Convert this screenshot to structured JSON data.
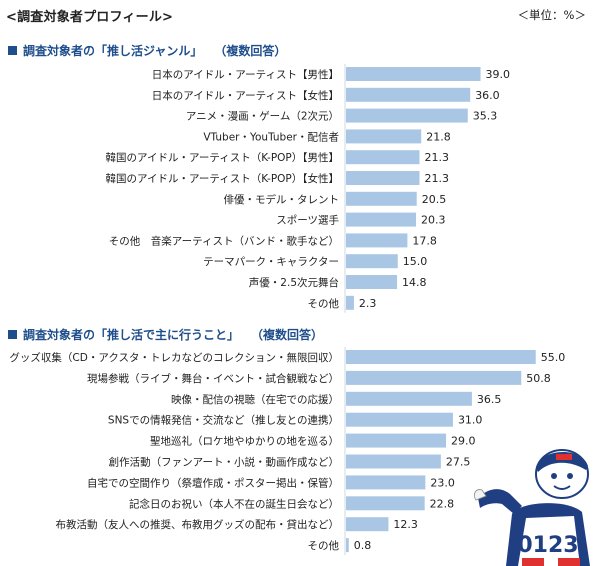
{
  "page": {
    "title": "<調査対象者プロフィール>",
    "unit": "＜単位：%＞"
  },
  "chart_data": [
    {
      "type": "bar",
      "orientation": "horizontal",
      "title": "調査対象者の「推し活ジャンル」",
      "note": "（複数回答）",
      "categories": [
        "日本のアイドル・アーティスト【男性】",
        "日本のアイドル・アーティスト【女性】",
        "アニメ・漫画・ゲーム（2次元）",
        "VTuber・YouTuber・配信者",
        "韓国のアイドル・アーティスト（K-POP）【男性】",
        "韓国のアイドル・アーティスト（K-POP）【女性】",
        "俳優・モデル・タレント",
        "スポーツ選手",
        "その他　音楽アーティスト（バンド・歌手など）",
        "テーマパーク・キャラクター",
        "声優・2.5次元舞台",
        "その他"
      ],
      "values": [
        39.0,
        36.0,
        35.3,
        21.8,
        21.3,
        21.3,
        20.5,
        20.3,
        17.8,
        15.0,
        14.8,
        2.3
      ],
      "value_labels": [
        "39.0",
        "36.0",
        "35.3",
        "21.8",
        "21.3",
        "21.3",
        "20.5",
        "20.3",
        "17.8",
        "15.0",
        "14.8",
        "2.3"
      ],
      "xlim": [
        0,
        60
      ],
      "bar_color": "#a9c7e4",
      "title_color": "#1f4e8c"
    },
    {
      "type": "bar",
      "orientation": "horizontal",
      "title": "調査対象者の「推し活で主に行うこと」",
      "note": "（複数回答）",
      "categories": [
        "グッズ収集（CD・アクスタ・トレカなどのコレクション・無限回収）",
        "現場参戦（ライブ・舞台・イベント・試合観戦など）",
        "映像・配信の視聴（在宅での応援）",
        "SNSでの情報発信・交流など（推し友との連携）",
        "聖地巡礼（ロケ地やゆかりの地を巡る）",
        "創作活動（ファンアート・小説・動画作成など）",
        "自宅での空間作り（祭壇作成・ポスター掲出・保管）",
        "記念日のお祝い（本人不在の誕生日会など）",
        "布教活動（友人への推奨、布教用グッズの配布・貸出など）",
        "その他"
      ],
      "values": [
        55.0,
        50.8,
        36.5,
        31.0,
        29.0,
        27.5,
        23.0,
        22.8,
        12.3,
        0.8
      ],
      "value_labels": [
        "55.0",
        "50.8",
        "36.5",
        "31.0",
        "29.0",
        "27.5",
        "23.0",
        "22.8",
        "12.3",
        "0.8"
      ],
      "xlim": [
        0,
        60
      ],
      "bar_color": "#a9c7e4",
      "title_color": "#1f4e8c"
    }
  ],
  "mascot": {
    "icon": "mascot-character-icon",
    "jersey_text": "0123"
  }
}
